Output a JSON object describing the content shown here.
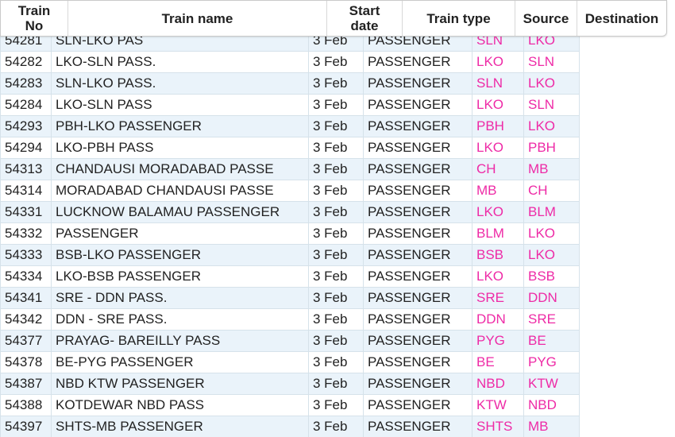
{
  "header": {
    "train_no": "Train\nNo",
    "train_name": "Train name",
    "start_date": "Start\ndate",
    "train_type": "Train type",
    "source": "Source",
    "destination": "Destination"
  },
  "colors": {
    "code_text": "#ee2aa6",
    "row_stripe": "#eaf3fa"
  },
  "rows": [
    {
      "no": "54281",
      "name": "SLN-LKO PAS",
      "date": "3 Feb",
      "type": "PASSENGER",
      "src": "SLN",
      "dst": "LKO"
    },
    {
      "no": "54282",
      "name": "LKO-SLN PASS.",
      "date": "3 Feb",
      "type": "PASSENGER",
      "src": "LKO",
      "dst": "SLN"
    },
    {
      "no": "54283",
      "name": "SLN-LKO PASS.",
      "date": "3 Feb",
      "type": "PASSENGER",
      "src": "SLN",
      "dst": "LKO"
    },
    {
      "no": "54284",
      "name": "LKO-SLN PASS",
      "date": "3 Feb",
      "type": "PASSENGER",
      "src": "LKO",
      "dst": "SLN"
    },
    {
      "no": "54293",
      "name": "PBH-LKO PASSENGER",
      "date": "3 Feb",
      "type": "PASSENGER",
      "src": "PBH",
      "dst": "LKO"
    },
    {
      "no": "54294",
      "name": "LKO-PBH PASS",
      "date": "3 Feb",
      "type": "PASSENGER",
      "src": "LKO",
      "dst": "PBH"
    },
    {
      "no": "54313",
      "name": "CHANDAUSI MORADABAD PASSE",
      "date": "3 Feb",
      "type": "PASSENGER",
      "src": "CH",
      "dst": "MB"
    },
    {
      "no": "54314",
      "name": "MORADABAD CHANDAUSI PASSE",
      "date": "3 Feb",
      "type": "PASSENGER",
      "src": "MB",
      "dst": "CH"
    },
    {
      "no": "54331",
      "name": "LUCKNOW BALAMAU PASSENGER",
      "date": "3 Feb",
      "type": "PASSENGER",
      "src": "LKO",
      "dst": "BLM"
    },
    {
      "no": "54332",
      "name": "PASSENGER",
      "date": "3 Feb",
      "type": "PASSENGER",
      "src": "BLM",
      "dst": "LKO"
    },
    {
      "no": "54333",
      "name": "BSB-LKO PASSENGER",
      "date": "3 Feb",
      "type": "PASSENGER",
      "src": "BSB",
      "dst": "LKO"
    },
    {
      "no": "54334",
      "name": "LKO-BSB PASSENGER",
      "date": "3 Feb",
      "type": "PASSENGER",
      "src": "LKO",
      "dst": "BSB"
    },
    {
      "no": "54341",
      "name": "SRE - DDN PASS.",
      "date": "3 Feb",
      "type": "PASSENGER",
      "src": "SRE",
      "dst": "DDN"
    },
    {
      "no": "54342",
      "name": "DDN - SRE PASS.",
      "date": "3 Feb",
      "type": "PASSENGER",
      "src": "DDN",
      "dst": "SRE"
    },
    {
      "no": "54377",
      "name": "PRAYAG- BAREILLY PASS",
      "date": "3 Feb",
      "type": "PASSENGER",
      "src": "PYG",
      "dst": "BE"
    },
    {
      "no": "54378",
      "name": "BE-PYG PASSENGER",
      "date": "3 Feb",
      "type": "PASSENGER",
      "src": "BE",
      "dst": "PYG"
    },
    {
      "no": "54387",
      "name": "NBD KTW PASSENGER",
      "date": "3 Feb",
      "type": "PASSENGER",
      "src": "NBD",
      "dst": "KTW"
    },
    {
      "no": "54388",
      "name": "KOTDEWAR NBD PASS",
      "date": "3 Feb",
      "type": "PASSENGER",
      "src": "KTW",
      "dst": "NBD"
    },
    {
      "no": "54397",
      "name": "SHTS-MB PASSENGER",
      "date": "3 Feb",
      "type": "PASSENGER",
      "src": "SHTS",
      "dst": "MB"
    }
  ]
}
